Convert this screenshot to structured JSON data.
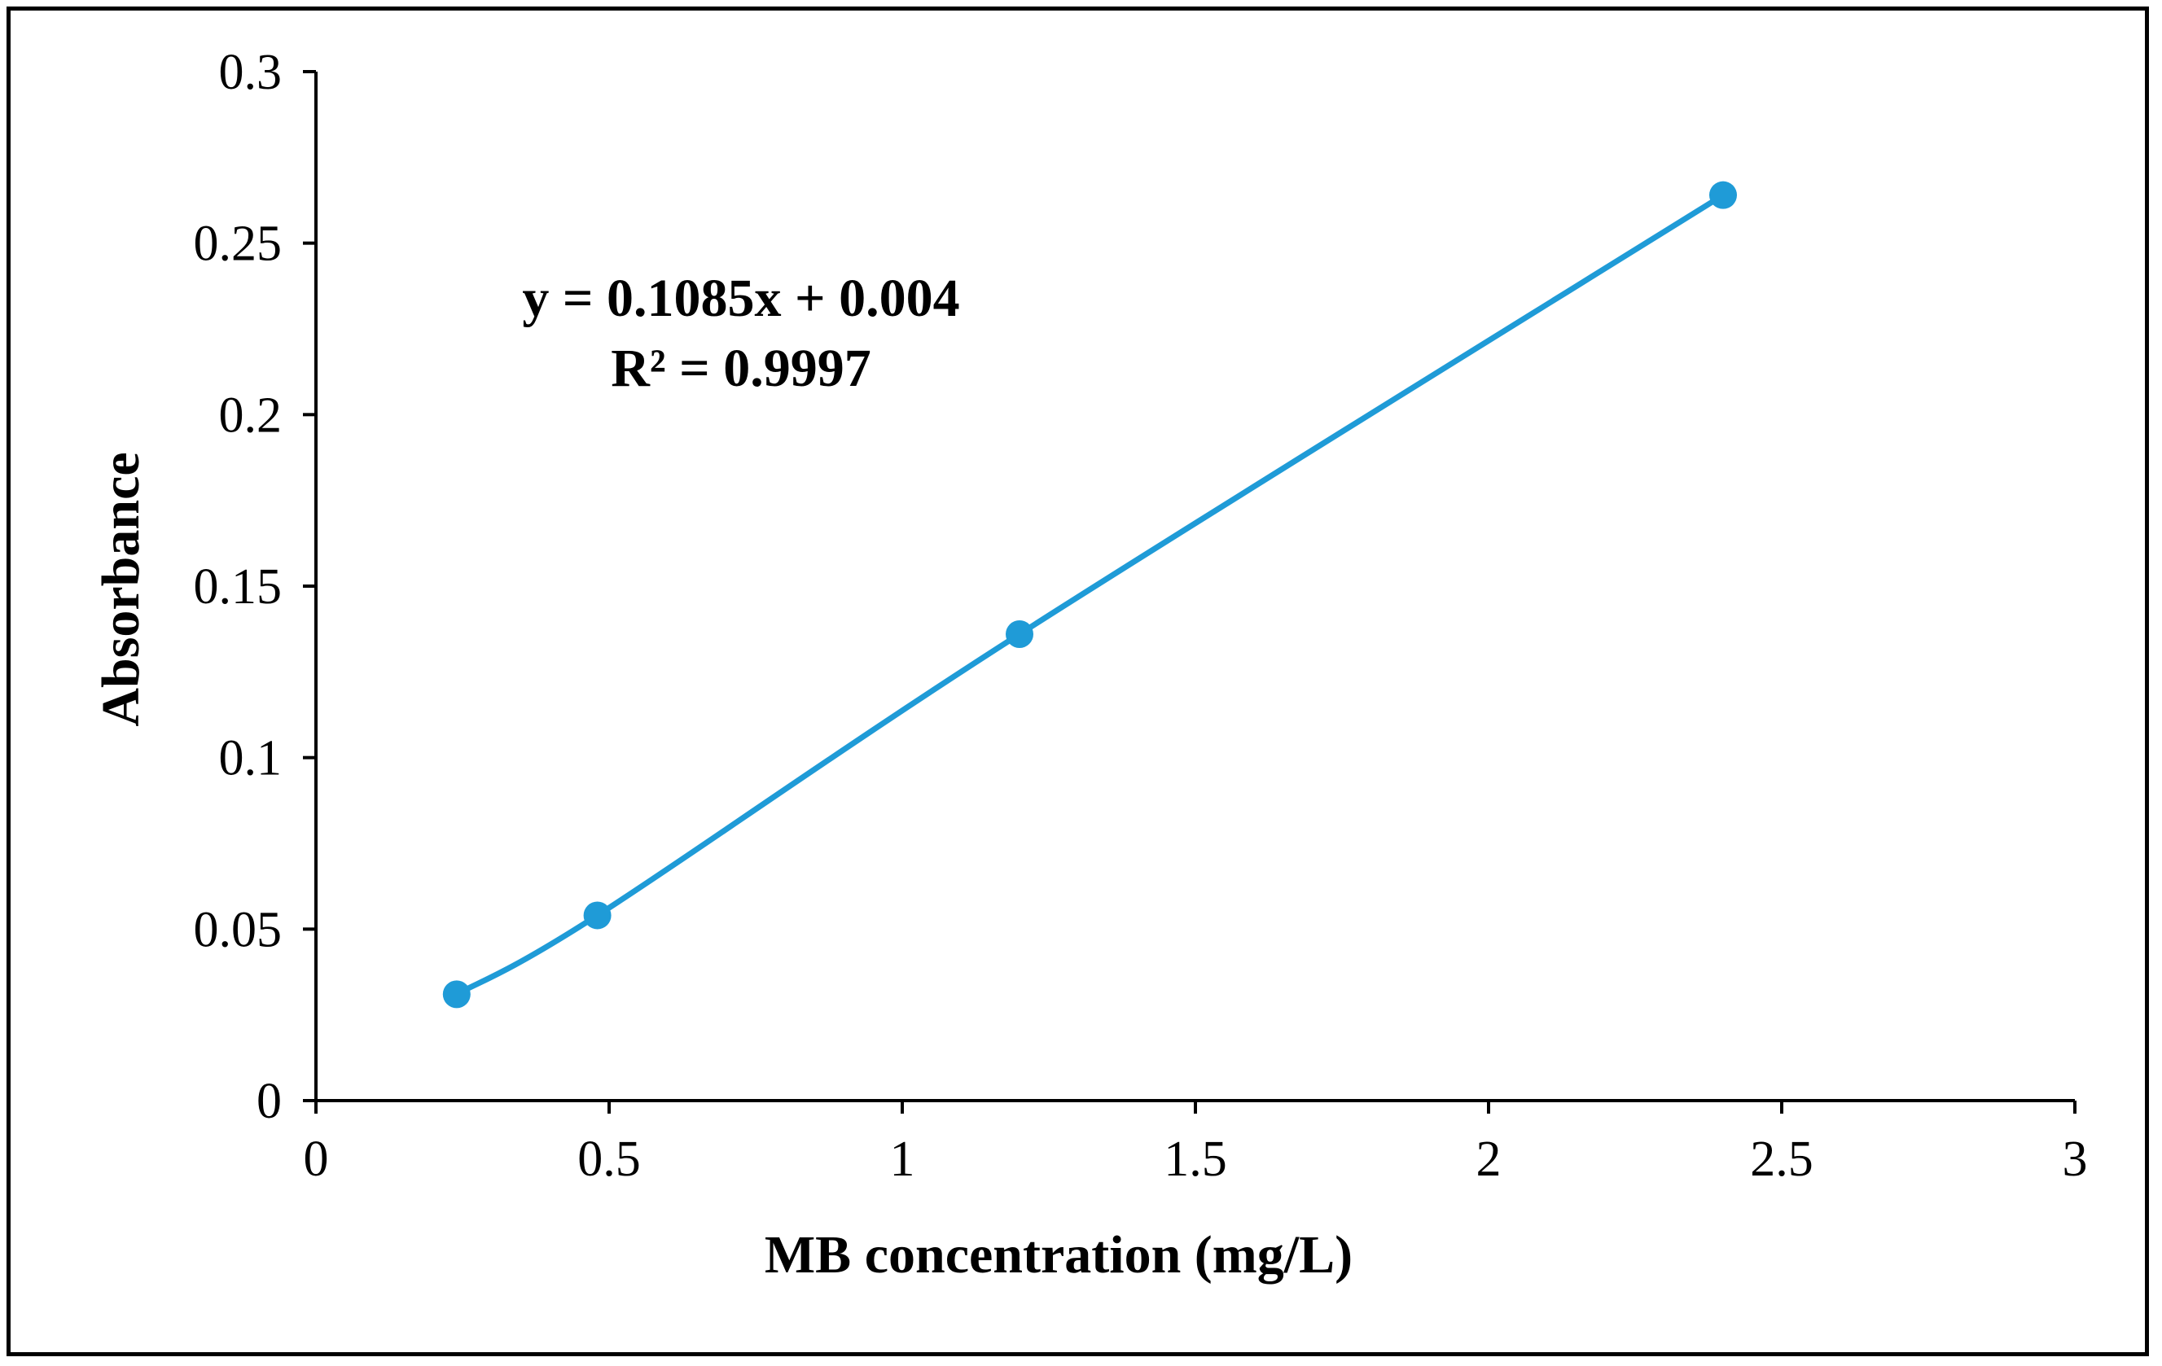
{
  "chart_data": {
    "type": "scatter",
    "title": "",
    "xlabel": "MB concentration (mg/L)",
    "ylabel": "Absorbance",
    "xlim": [
      0,
      3
    ],
    "ylim": [
      0,
      0.3
    ],
    "xticks": [
      0,
      0.5,
      1,
      1.5,
      2,
      2.5,
      3
    ],
    "xtick_labels": [
      "0",
      "0.5",
      "1",
      "1.5",
      "2",
      "2.5",
      "3"
    ],
    "yticks": [
      0,
      0.05,
      0.1,
      0.15,
      0.2,
      0.25,
      0.3
    ],
    "ytick_labels": [
      "0",
      "0.05",
      "0.1",
      "0.15",
      "0.2",
      "0.25",
      "0.3"
    ],
    "grid": false,
    "series": [
      {
        "name": "Absorbance",
        "color": "#1f9bd7",
        "line": "smooth",
        "x": [
          0.24,
          0.48,
          1.2,
          2.4
        ],
        "y": [
          0.031,
          0.054,
          0.136,
          0.264
        ]
      }
    ],
    "annotations": {
      "equation": "y = 0.1085x + 0.004",
      "r_squared": "R² = 0.9997"
    }
  }
}
